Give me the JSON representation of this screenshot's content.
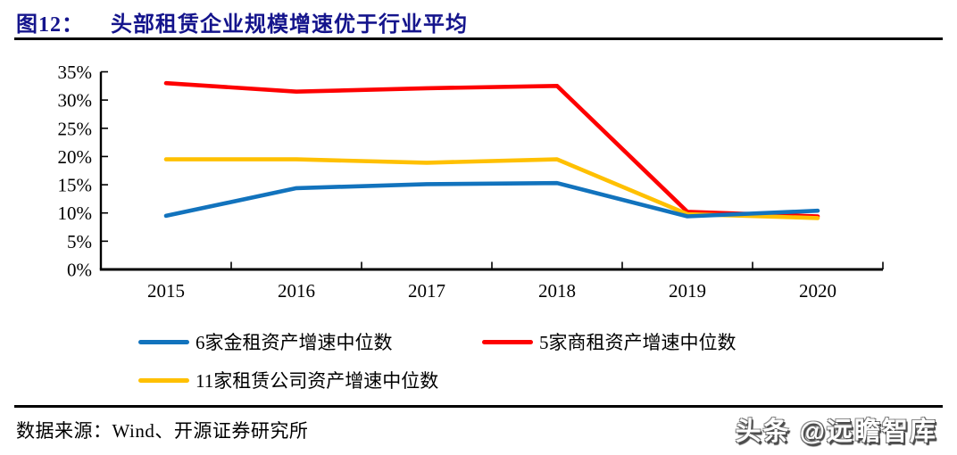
{
  "header": {
    "figure_label": "图12：",
    "title": "头部租赁企业规模增速优于行业平均",
    "title_color": "#14148C"
  },
  "chart_data": {
    "type": "line",
    "title": "图12：头部租赁企业规模增速优于行业平均",
    "categories": [
      "2015",
      "2016",
      "2017",
      "2018",
      "2019",
      "2020"
    ],
    "series": [
      {
        "name": "6家金租资产增速中位数",
        "color": "#1273BD",
        "values": [
          9.5,
          14.4,
          15.1,
          15.3,
          9.4,
          10.4
        ]
      },
      {
        "name": "5家商租资产增速中位数",
        "color": "#FE0000",
        "values": [
          33.0,
          31.5,
          32.1,
          32.5,
          10.2,
          9.4
        ]
      },
      {
        "name": "11家租赁公司资产增速中位数",
        "color": "#FFC000",
        "values": [
          19.5,
          19.5,
          18.9,
          19.5,
          9.8,
          9.1
        ]
      }
    ],
    "draw_order": [
      1,
      2,
      0
    ],
    "xlabel": "",
    "ylabel": "",
    "ylim": [
      0,
      35
    ],
    "ytick_step": 5,
    "ytick_suffix": "%",
    "grid": false,
    "legend_position": "bottom"
  },
  "footer": {
    "source": "数据来源：Wind、开源证券研究所",
    "watermark": "头条 @远瞻智库"
  }
}
